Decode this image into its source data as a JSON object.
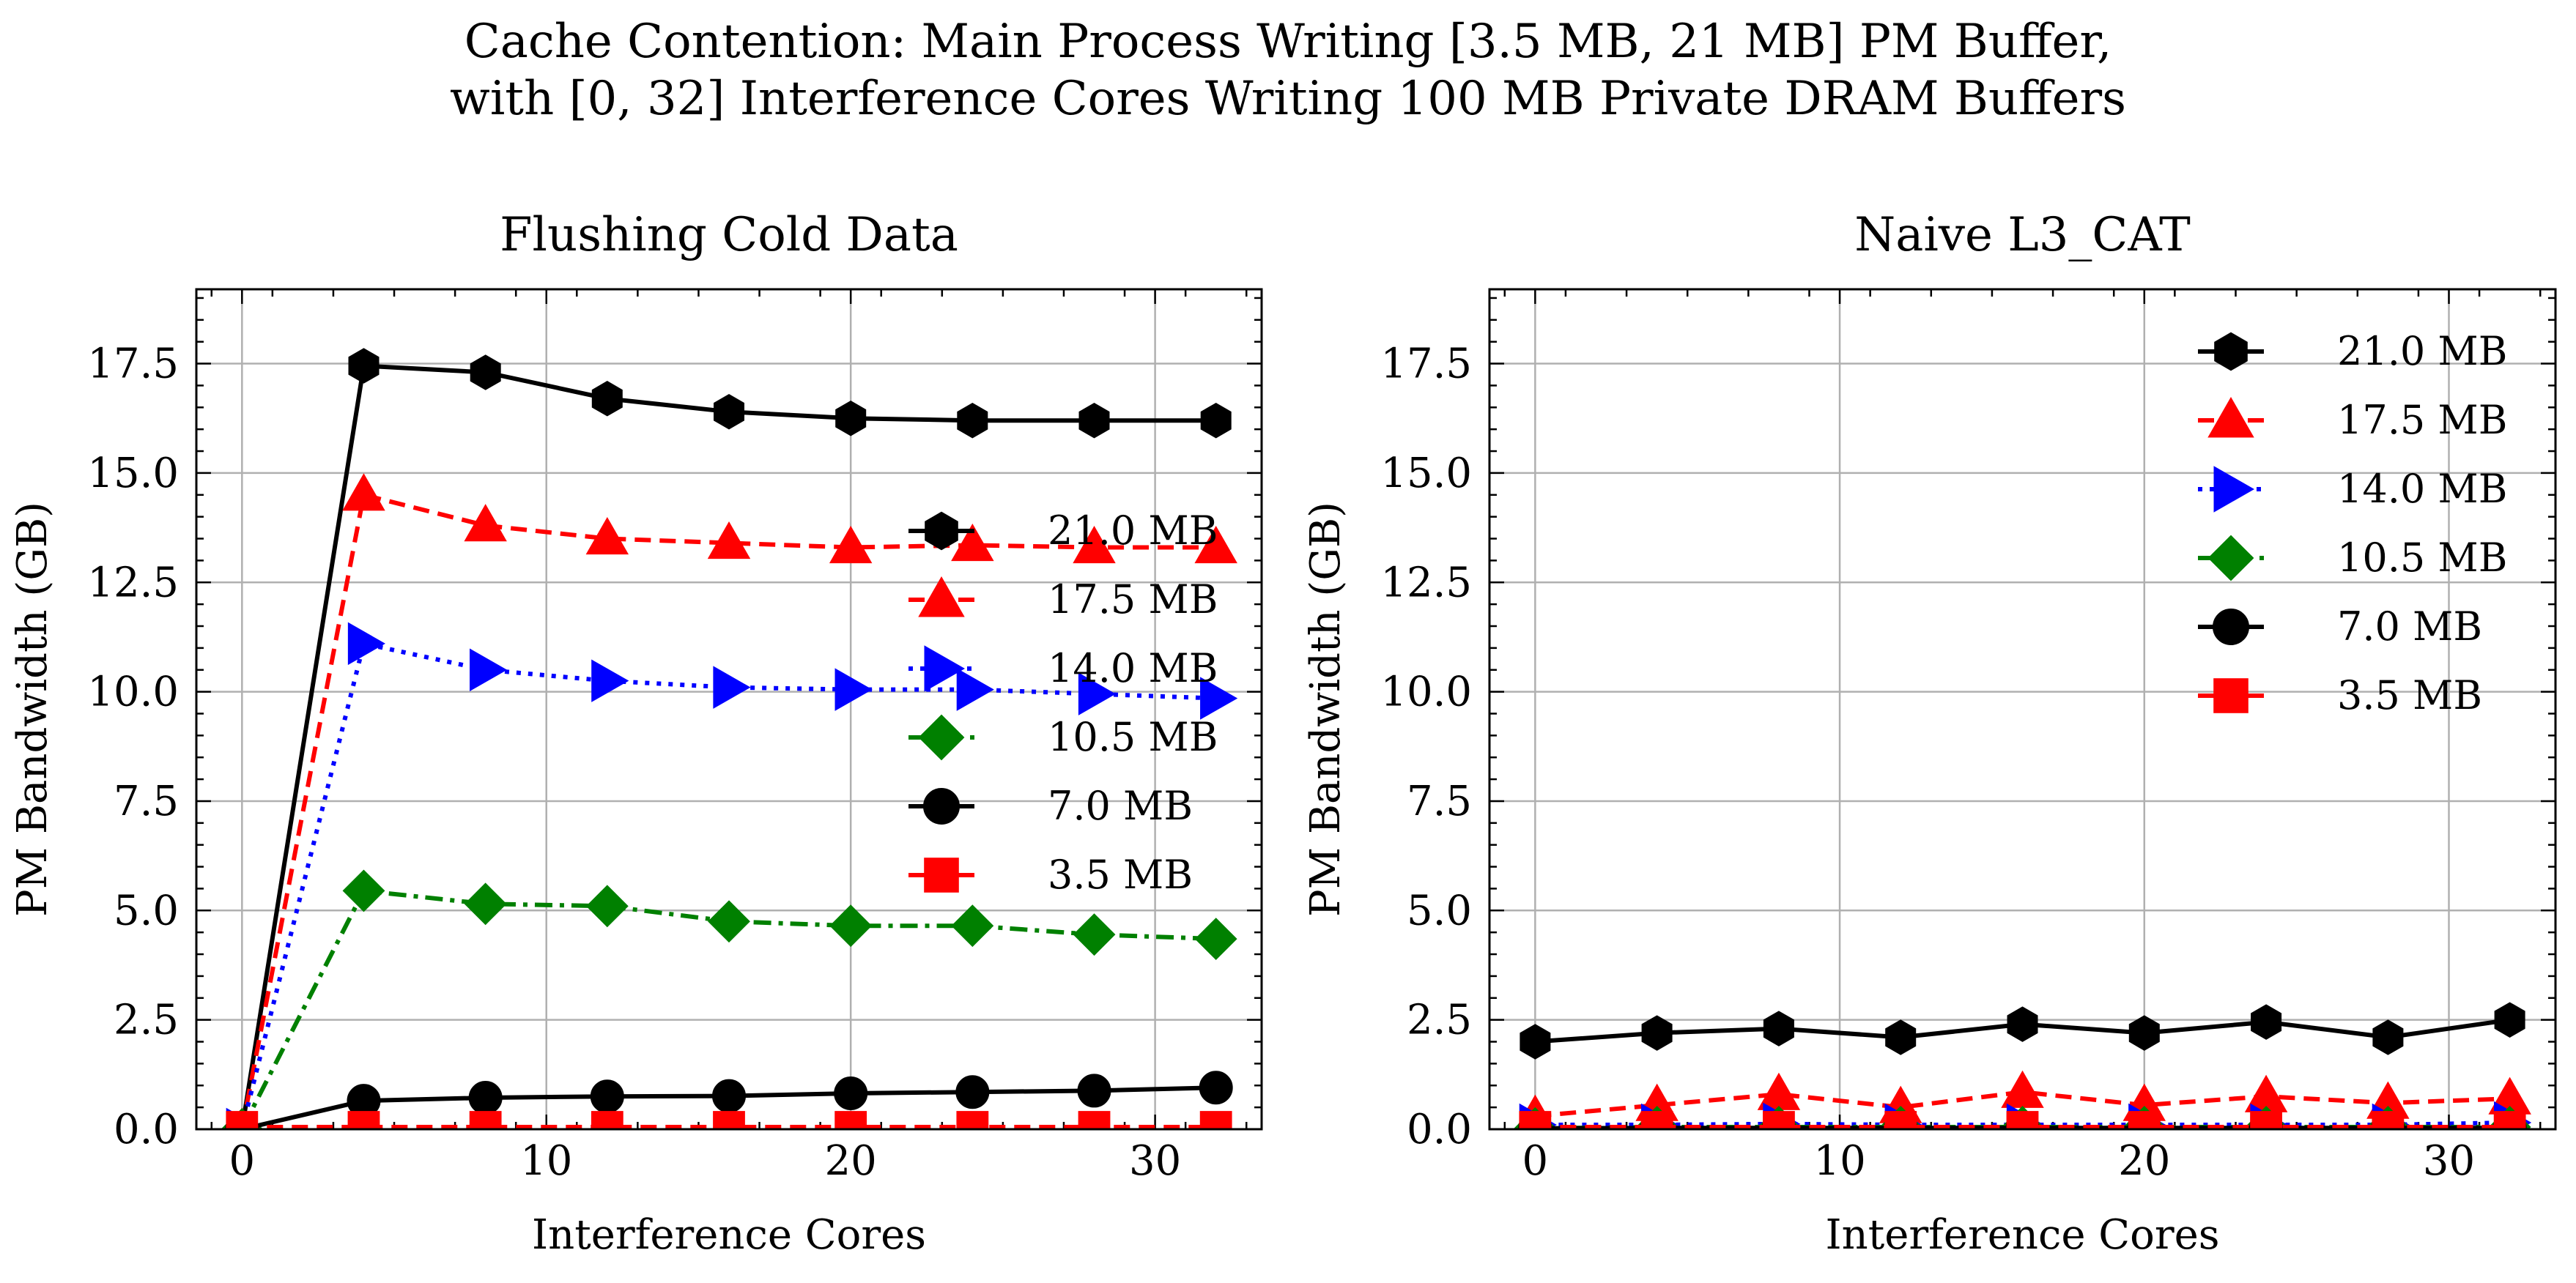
{
  "figure": {
    "title_line1": "Cache Contention: Main Process Writing [3.5 MB, 21 MB] PM Buffer,",
    "title_line2": "with [0, 32] Interference Cores Writing 100 MB Private DRAM Buffers"
  },
  "chart_data": [
    {
      "type": "line",
      "title": "Flushing Cold Data",
      "xlabel": "Interference Cores",
      "ylabel": "PM Bandwidth (GB)",
      "xlim": [
        -1.5,
        33.5
      ],
      "ylim": [
        0,
        19.2
      ],
      "xticks": [
        0,
        10,
        20,
        30
      ],
      "yticks": [
        0.0,
        2.5,
        5.0,
        7.5,
        10.0,
        12.5,
        15.0,
        17.5
      ],
      "ytick_labels": [
        "0.0",
        "2.5",
        "5.0",
        "7.5",
        "10.0",
        "12.5",
        "15.0",
        "17.5"
      ],
      "grid": true,
      "legend_position": "center-right",
      "x": [
        0,
        4,
        8,
        12,
        16,
        20,
        24,
        28,
        32
      ],
      "series": [
        {
          "name": "21.0 MB",
          "color": "#000000",
          "marker": "hexagon",
          "linestyle": "solid",
          "values": [
            0.0,
            17.45,
            17.3,
            16.7,
            16.4,
            16.25,
            16.2,
            16.2,
            16.2
          ]
        },
        {
          "name": "17.5 MB",
          "color": "#ff0000",
          "marker": "triangle-up",
          "linestyle": "dashed",
          "values": [
            0.0,
            14.5,
            13.8,
            13.5,
            13.4,
            13.3,
            13.35,
            13.3,
            13.3
          ]
        },
        {
          "name": "14.0 MB",
          "color": "#0000ff",
          "marker": "triangle-right",
          "linestyle": "dotted",
          "values": [
            0.0,
            11.1,
            10.5,
            10.25,
            10.1,
            10.05,
            10.05,
            9.95,
            9.85
          ]
        },
        {
          "name": "10.5 MB",
          "color": "#008000",
          "marker": "diamond",
          "linestyle": "dashdot",
          "values": [
            0.0,
            5.45,
            5.15,
            5.1,
            4.75,
            4.65,
            4.65,
            4.45,
            4.35
          ]
        },
        {
          "name": "7.0 MB",
          "color": "#000000",
          "marker": "circle",
          "linestyle": "solid",
          "values": [
            0.0,
            0.65,
            0.72,
            0.75,
            0.76,
            0.82,
            0.85,
            0.88,
            0.95
          ]
        },
        {
          "name": "3.5 MB",
          "color": "#ff0000",
          "marker": "square",
          "linestyle": "dashed",
          "values": [
            0.05,
            0.05,
            0.05,
            0.05,
            0.05,
            0.05,
            0.05,
            0.05,
            0.05
          ]
        }
      ]
    },
    {
      "type": "line",
      "title": "Naive L3_CAT",
      "xlabel": "Interference Cores",
      "ylabel": "PM Bandwidth (GB)",
      "xlim": [
        -1.5,
        33.5
      ],
      "ylim": [
        0,
        19.2
      ],
      "xticks": [
        0,
        10,
        20,
        30
      ],
      "yticks": [
        0.0,
        2.5,
        5.0,
        7.5,
        10.0,
        12.5,
        15.0,
        17.5
      ],
      "ytick_labels": [
        "0.0",
        "2.5",
        "5.0",
        "7.5",
        "10.0",
        "12.5",
        "15.0",
        "17.5"
      ],
      "grid": true,
      "legend_position": "upper-right",
      "x": [
        0,
        4,
        8,
        12,
        16,
        20,
        24,
        28,
        32
      ],
      "series": [
        {
          "name": "21.0 MB",
          "color": "#000000",
          "marker": "hexagon",
          "linestyle": "solid",
          "values": [
            2.0,
            2.2,
            2.3,
            2.1,
            2.4,
            2.2,
            2.45,
            2.1,
            2.5
          ]
        },
        {
          "name": "17.5 MB",
          "color": "#ff0000",
          "marker": "triangle-up",
          "linestyle": "dashed",
          "values": [
            0.3,
            0.55,
            0.8,
            0.5,
            0.85,
            0.55,
            0.75,
            0.6,
            0.7
          ]
        },
        {
          "name": "14.0 MB",
          "color": "#0000ff",
          "marker": "triangle-right",
          "linestyle": "dotted",
          "values": [
            0.1,
            0.1,
            0.12,
            0.1,
            0.1,
            0.1,
            0.1,
            0.1,
            0.15
          ]
        },
        {
          "name": "10.5 MB",
          "color": "#008000",
          "marker": "diamond",
          "linestyle": "dashdot",
          "values": [
            0.02,
            0.05,
            0.05,
            0.05,
            0.05,
            0.05,
            0.05,
            0.05,
            0.05
          ]
        },
        {
          "name": "7.0 MB",
          "color": "#000000",
          "marker": "circle",
          "linestyle": "solid",
          "values": [
            0.02,
            0.03,
            0.03,
            0.03,
            0.03,
            0.03,
            0.03,
            0.03,
            0.03
          ]
        },
        {
          "name": "3.5 MB",
          "color": "#ff0000",
          "marker": "square",
          "linestyle": "dashed",
          "values": [
            0.05,
            0.05,
            0.05,
            0.05,
            0.05,
            0.05,
            0.05,
            0.05,
            0.05
          ]
        }
      ]
    }
  ]
}
